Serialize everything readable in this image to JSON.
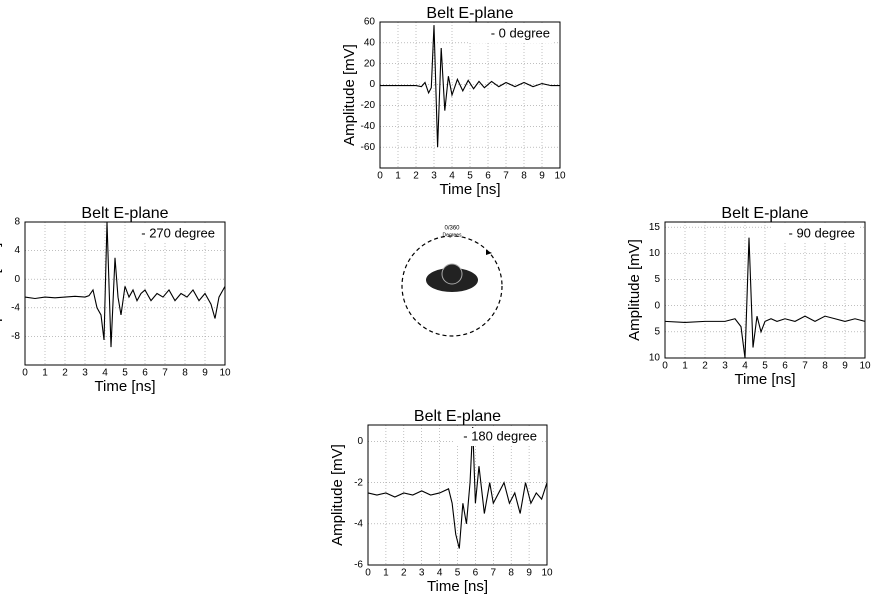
{
  "chart_data": [
    {
      "type": "line",
      "title": "Belt E-plane",
      "annotation": "- 0 degree",
      "xlabel": "Time [ns]",
      "ylabel": "Amplitude [mV]",
      "x": [
        0,
        1,
        2,
        2.3,
        2.5,
        2.7,
        2.85,
        3.0,
        3.2,
        3.4,
        3.6,
        3.8,
        4.0,
        4.3,
        4.6,
        4.9,
        5.2,
        5.5,
        5.8,
        6.2,
        6.6,
        7.0,
        7.5,
        8,
        8.5,
        9,
        9.5,
        10
      ],
      "series": [
        {
          "color": "#000000",
          "values": [
            -1,
            -1,
            -1,
            -2,
            2,
            -8,
            -3,
            57,
            -60,
            35,
            -25,
            8,
            -10,
            5,
            -6,
            4,
            -4,
            3,
            -3,
            3,
            -2,
            2,
            -2,
            2,
            -2,
            1,
            -1,
            -1
          ]
        }
      ],
      "xlim": [
        0,
        10
      ],
      "xticks": [
        0,
        1,
        2,
        3,
        4,
        5,
        6,
        7,
        8,
        9,
        10
      ],
      "ylim": [
        -80,
        60
      ],
      "yticks": [
        60,
        40,
        20,
        0,
        -20,
        -40,
        -60
      ],
      "grid": true
    },
    {
      "type": "line",
      "title": "Belt E-plane",
      "annotation": "- 270 degree",
      "xlabel": "Time [ns]",
      "ylabel": "Amplitude [mV]",
      "x": [
        0,
        0.5,
        1,
        1.5,
        2,
        2.5,
        3,
        3.2,
        3.4,
        3.6,
        3.8,
        3.95,
        4.1,
        4.3,
        4.5,
        4.65,
        4.8,
        5,
        5.2,
        5.4,
        5.6,
        5.8,
        6,
        6.3,
        6.6,
        6.9,
        7.2,
        7.5,
        7.8,
        8.1,
        8.4,
        8.7,
        9,
        9.3,
        9.5,
        9.7,
        10
      ],
      "series": [
        {
          "color": "#000000",
          "values": [
            -2.5,
            -2.7,
            -2.5,
            -2.6,
            -2.5,
            -2.4,
            -2.5,
            -2.3,
            -1.5,
            -4,
            -5,
            -8.5,
            8,
            -9.5,
            3,
            -2.5,
            -5,
            -1,
            -2.5,
            -1.5,
            -3,
            -2,
            -1.5,
            -3,
            -2,
            -2.5,
            -1.5,
            -3,
            -2,
            -2.5,
            -1.5,
            -3,
            -2,
            -3.5,
            -5.5,
            -2.5,
            -1
          ]
        }
      ],
      "xlim": [
        0,
        10
      ],
      "xticks": [
        0,
        1,
        2,
        3,
        4,
        5,
        6,
        7,
        8,
        9,
        10
      ],
      "ylim": [
        -12,
        8
      ],
      "yticks": [
        8,
        4,
        0,
        -4,
        -8
      ],
      "grid": true
    },
    {
      "type": "line",
      "title": "Belt E-plane",
      "annotation": "- 90 degree",
      "xlabel": "Time [ns]",
      "ylabel": "Amplitude [mV]",
      "x": [
        0,
        1,
        2,
        3,
        3.5,
        3.8,
        4.0,
        4.2,
        4.4,
        4.6,
        4.8,
        5.0,
        5.3,
        5.6,
        6,
        6.5,
        7,
        7.5,
        8,
        8.5,
        9,
        9.5,
        10
      ],
      "series": [
        {
          "color": "#000000",
          "values": [
            -3,
            -3.2,
            -3,
            -3,
            -2.5,
            -4,
            -10,
            13,
            -8,
            -2,
            -5,
            -3,
            -2.5,
            -3,
            -2.5,
            -3,
            -2,
            -3,
            -2,
            -2.5,
            -3,
            -2.5,
            -3
          ]
        }
      ],
      "xlim": [
        0,
        10
      ],
      "xticks": [
        0,
        1,
        2,
        3,
        4,
        5,
        6,
        7,
        8,
        9,
        10
      ],
      "ylim": [
        -10,
        16
      ],
      "yticks": [
        15,
        10,
        5,
        0,
        {
          "value": -5,
          "label": "5"
        },
        {
          "value": -10,
          "label": "10"
        }
      ],
      "grid": true
    },
    {
      "type": "line",
      "title": "Belt E-plane",
      "annotation": "- 180 degree",
      "xlabel": "Time [ns]",
      "ylabel": "Amplitude [mV]",
      "x": [
        0,
        0.5,
        1,
        1.5,
        2,
        2.5,
        3,
        3.5,
        4,
        4.5,
        4.7,
        4.9,
        5.1,
        5.3,
        5.5,
        5.7,
        5.85,
        6,
        6.2,
        6.5,
        6.8,
        7,
        7.3,
        7.6,
        7.9,
        8.2,
        8.5,
        8.8,
        9.1,
        9.4,
        9.7,
        10
      ],
      "series": [
        {
          "color": "#000000",
          "values": [
            -2.5,
            -2.6,
            -2.5,
            -2.7,
            -2.5,
            -2.6,
            -2.4,
            -2.6,
            -2.5,
            -2.3,
            -3,
            -4.5,
            -5.2,
            -3,
            -4,
            -2,
            0.7,
            -3,
            -1.2,
            -3.5,
            -2,
            -3,
            -2.5,
            -2,
            -3,
            -2.5,
            -3.5,
            -2,
            -3,
            -2.5,
            -2.8,
            -2
          ]
        }
      ],
      "xlim": [
        0,
        10
      ],
      "xticks": [
        0,
        1,
        2,
        3,
        4,
        5,
        6,
        7,
        8,
        9,
        10
      ],
      "ylim": [
        -6,
        0.8
      ],
      "yticks": [
        0,
        -2,
        -4,
        -6
      ],
      "grid": true
    }
  ],
  "diagram": {
    "angle_label": "0/360",
    "unit_label": "Degrees"
  }
}
